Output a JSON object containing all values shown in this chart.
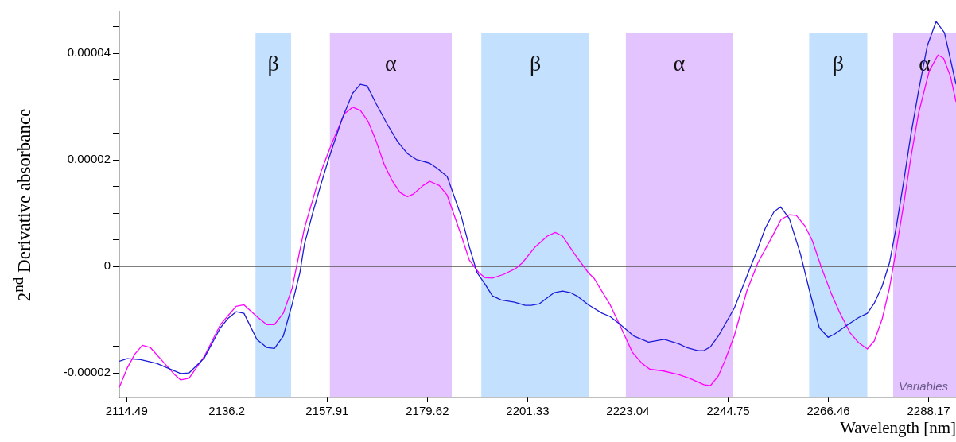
{
  "chart_data": {
    "type": "line",
    "xlabel": "Wavelength [nm]",
    "ylabel": "2$^{nd}$ Derivative absorbance",
    "xlim": [
      2112.9,
      2294.1
    ],
    "ylim": [
      -2.46e-05,
      4.78e-05
    ],
    "xticks": [
      2114.49,
      2136.2,
      2157.91,
      2179.62,
      2201.33,
      2223.04,
      2244.75,
      2266.46,
      2288.17
    ],
    "yticks": [
      {
        "value": -2e-05,
        "label": "-0.00002"
      },
      {
        "value": -1.5e-05,
        "label": null
      },
      {
        "value": -1e-05,
        "label": null
      },
      {
        "value": -5e-06,
        "label": null
      },
      0,
      {
        "value": 5e-06,
        "label": null
      },
      {
        "value": 1e-05,
        "label": null
      },
      {
        "value": 1.5e-05,
        "label": null
      },
      {
        "value": 2e-05,
        "label": "0.00002"
      },
      {
        "value": 2.5e-05,
        "label": null
      },
      {
        "value": 3e-05,
        "label": null
      },
      {
        "value": 3.5e-05,
        "label": null
      },
      {
        "value": 4e-05,
        "label": "0.00004"
      },
      {
        "value": 4.5e-05,
        "label": null
      }
    ],
    "grid": false,
    "legend": false,
    "marker": "none",
    "line_style": "solid",
    "series": [
      {
        "color": "#1c1cd8",
        "x": [
          2112.9,
          2114.6,
          2117.5,
          2121.0,
          2126.2,
          2128.0,
          2131.3,
          2134.8,
          2136.5,
          2138.2,
          2139.9,
          2142.7,
          2144.8,
          2146.5,
          2148.4,
          2150.3,
          2152.0,
          2153.0,
          2154.8,
          2156.5,
          2158.2,
          2161.1,
          2163.4,
          2165.1,
          2166.6,
          2168.5,
          2171.0,
          2173.2,
          2175.3,
          2177.2,
          2180.1,
          2181.8,
          2183.9,
          2187.0,
          2188.7,
          2190.4,
          2192.1,
          2193.7,
          2195.6,
          2198.5,
          2200.8,
          2202.1,
          2203.9,
          2207.1,
          2208.9,
          2210.6,
          2212.3,
          2214.5,
          2217.5,
          2219.2,
          2221.4,
          2224.4,
          2227.5,
          2230.9,
          2234.0,
          2235.7,
          2238.2,
          2239.5,
          2240.9,
          2242.6,
          2246.1,
          2249.5,
          2251.2,
          2252.8,
          2254.7,
          2256.1,
          2258.0,
          2260.4,
          2262.3,
          2264.5,
          2266.4,
          2267.8,
          2270.2,
          2273.0,
          2274.9,
          2276.4,
          2278.1,
          2279.7,
          2281.2,
          2282.8,
          2284.3,
          2286.0,
          2287.9,
          2289.8,
          2291.6,
          2294.1
        ],
        "values": [
          -1.78e-05,
          -1.73e-05,
          -1.75e-05,
          -1.82e-05,
          -2.01e-05,
          -2e-05,
          -1.72e-05,
          -1.15e-05,
          -9.7e-06,
          -8.5e-06,
          -8.8e-06,
          -1.37e-05,
          -1.52e-05,
          -1.54e-05,
          -1.31e-05,
          -7.2e-06,
          -1.2e-06,
          4.2e-06,
          1.01e-05,
          1.52e-05,
          2.01e-05,
          2.76e-05,
          3.25e-05,
          3.42e-05,
          3.39e-05,
          3.06e-05,
          2.66e-05,
          2.34e-05,
          2.12e-05,
          2.01e-05,
          1.94e-05,
          1.84e-05,
          1.69e-05,
          9.3e-06,
          3.7e-06,
          -1.2e-06,
          -3.3e-06,
          -5.5e-06,
          -6.3e-06,
          -6.7e-06,
          -7.3e-06,
          -7.3e-06,
          -7e-06,
          -4.9e-06,
          -4.6e-06,
          -4.9e-06,
          -5.7e-06,
          -7.2e-06,
          -8.8e-06,
          -9.4e-06,
          -1.09e-05,
          -1.31e-05,
          -1.42e-05,
          -1.37e-05,
          -1.45e-05,
          -1.52e-05,
          -1.58e-05,
          -1.58e-05,
          -1.51e-05,
          -1.31e-05,
          -7.8e-06,
          -3e-07,
          3.4e-06,
          7.2e-06,
          1.03e-05,
          1.12e-05,
          9e-06,
          2.4e-06,
          -4.3e-06,
          -1.15e-05,
          -1.33e-05,
          -1.27e-05,
          -1.12e-05,
          -9.6e-06,
          -8.8e-06,
          -6.9e-06,
          -3.7e-06,
          7e-07,
          7.6e-06,
          1.61e-05,
          2.46e-05,
          3.3e-05,
          4.15e-05,
          4.6e-05,
          4.39e-05,
          3.42e-05
        ]
      },
      {
        "color": "#ff00ff",
        "x": [
          2112.9,
          2114.6,
          2116.3,
          2117.9,
          2119.6,
          2122.7,
          2125.0,
          2126.2,
          2128.0,
          2131.3,
          2134.8,
          2138.2,
          2139.9,
          2142.7,
          2144.8,
          2146.5,
          2148.4,
          2150.3,
          2153.0,
          2156.5,
          2158.9,
          2161.7,
          2163.4,
          2165.1,
          2166.8,
          2168.5,
          2170.3,
          2172.0,
          2173.7,
          2175.3,
          2176.6,
          2178.7,
          2180.1,
          2182.2,
          2183.9,
          2185.8,
          2187.0,
          2188.7,
          2190.8,
          2192.1,
          2193.7,
          2196.1,
          2198.7,
          2200.2,
          2203.0,
          2205.6,
          2207.3,
          2208.9,
          2211.6,
          2214.5,
          2215.7,
          2219.2,
          2221.4,
          2224.0,
          2226.1,
          2227.8,
          2230.6,
          2234.0,
          2236.4,
          2239.5,
          2240.9,
          2242.6,
          2244.0,
          2246.1,
          2248.8,
          2251.2,
          2254.4,
          2256.2,
          2258.0,
          2259.5,
          2261.4,
          2263.0,
          2265.0,
          2267.1,
          2269.0,
          2271.2,
          2273.0,
          2274.9,
          2276.4,
          2278.1,
          2279.7,
          2281.2,
          2282.8,
          2284.3,
          2286.0,
          2288.3,
          2290.2,
          2291.4,
          2292.9,
          2294.1
        ],
        "values": [
          -2.27e-05,
          -1.91e-05,
          -1.64e-05,
          -1.48e-05,
          -1.52e-05,
          -1.82e-05,
          -2.04e-05,
          -2.13e-05,
          -2.1e-05,
          -1.69e-05,
          -1.09e-05,
          -7.5e-06,
          -7.2e-06,
          -9.4e-06,
          -1.09e-05,
          -1.09e-05,
          -8.8e-06,
          -4.2e-06,
          7.2e-06,
          1.76e-05,
          2.31e-05,
          2.87e-05,
          2.99e-05,
          2.93e-05,
          2.72e-05,
          2.36e-05,
          1.91e-05,
          1.61e-05,
          1.39e-05,
          1.31e-05,
          1.36e-05,
          1.52e-05,
          1.6e-05,
          1.52e-05,
          1.34e-05,
          8.7e-06,
          5.7e-06,
          1.2e-06,
          -1.2e-06,
          -2.1e-06,
          -2.2e-06,
          -1.5e-06,
          -4e-07,
          7e-07,
          3.7e-06,
          5.7e-06,
          6.4e-06,
          5.7e-06,
          2.2e-06,
          -1.2e-06,
          -2.2e-06,
          -7.2e-06,
          -1.12e-05,
          -1.61e-05,
          -1.82e-05,
          -1.93e-05,
          -1.96e-05,
          -2.03e-05,
          -2.1e-05,
          -2.22e-05,
          -2.24e-05,
          -2.06e-05,
          -1.78e-05,
          -1.3e-05,
          -4.6e-06,
          7e-07,
          5.8e-06,
          8.8e-06,
          9.7e-06,
          9.6e-06,
          7.6e-06,
          4.8e-06,
          -3e-07,
          -5.1e-06,
          -8.8e-06,
          -1.25e-05,
          -1.43e-05,
          -1.55e-05,
          -1.4e-05,
          -9.9e-06,
          -4e-06,
          3.4e-06,
          1.18e-05,
          2.03e-05,
          2.88e-05,
          3.67e-05,
          3.97e-05,
          3.91e-05,
          3.57e-05,
          3.09e-05
        ]
      }
    ],
    "ref_lines": [
      {
        "axis": "y",
        "value": 0,
        "color": "#555555"
      }
    ],
    "bands": [
      {
        "axis": "x",
        "from": 2142.4,
        "to": 2150.1,
        "label": "β",
        "color": "#c4e0ff"
      },
      {
        "axis": "x",
        "from": 2158.5,
        "to": 2184.9,
        "label": "α",
        "color": "#e3c4ff"
      },
      {
        "axis": "x",
        "from": 2191.3,
        "to": 2214.7,
        "label": "β",
        "color": "#c4e0ff"
      },
      {
        "axis": "x",
        "from": 2222.6,
        "to": 2245.7,
        "label": "α",
        "color": "#e3c4ff"
      },
      {
        "axis": "x",
        "from": 2262.3,
        "to": 2274.9,
        "label": "β",
        "color": "#c4e0ff"
      },
      {
        "axis": "x",
        "from": 2280.5,
        "to": 2294.1,
        "label": "α",
        "color": "#e3c4ff"
      }
    ],
    "annotations": [
      "Variables"
    ]
  }
}
